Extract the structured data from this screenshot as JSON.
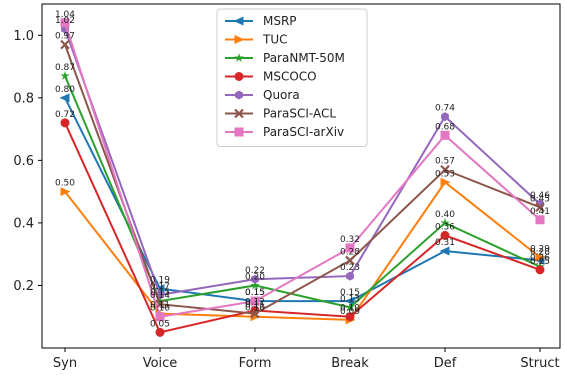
{
  "chart_data": {
    "type": "line",
    "title": "",
    "xlabel": "",
    "ylabel": "",
    "categories": [
      "Syn",
      "Voice",
      "Form",
      "Break",
      "Def",
      "Struct"
    ],
    "ylim": [
      0.0,
      1.1
    ],
    "yticks": [
      "0.2",
      "0.4",
      "0.6",
      "0.8",
      "1.0"
    ],
    "grid": false,
    "legend_position": "top-center",
    "series": [
      {
        "name": "MSRP",
        "color": "#1f77b4",
        "marker": "triangle-left",
        "values": [
          0.8,
          0.19,
          0.15,
          0.15,
          0.31,
          0.28
        ],
        "labels": [
          "0.80",
          "0.19",
          "0.15",
          "0.15",
          "0.31",
          "0.28"
        ]
      },
      {
        "name": "TUC",
        "color": "#ff7f0e",
        "marker": "triangle-right",
        "values": [
          0.5,
          0.11,
          0.1,
          0.09,
          0.53,
          0.29
        ],
        "labels": [
          "0.50",
          "0.11",
          "0.10",
          "0.09",
          "0.53",
          "0.29"
        ]
      },
      {
        "name": "ParaNMT-50M",
        "color": "#2ca02c",
        "marker": "star",
        "values": [
          0.87,
          0.15,
          0.2,
          0.13,
          0.4,
          0.26
        ],
        "labels": [
          "0.87",
          "0.15",
          "0.20",
          "0.13",
          "0.40",
          "0.26"
        ]
      },
      {
        "name": "MSCOCO",
        "color": "#d62728",
        "marker": "circle",
        "values": [
          0.72,
          0.05,
          0.12,
          0.1,
          0.36,
          0.25
        ],
        "labels": [
          "0.72",
          "0.05",
          "0.12",
          "0.10",
          "0.36",
          "0.25"
        ]
      },
      {
        "name": "Quora",
        "color": "#9467bd",
        "marker": "hexagon",
        "values": [
          1.02,
          0.17,
          0.22,
          0.23,
          0.74,
          0.46
        ],
        "labels": [
          "1.02",
          "0.17",
          "0.22",
          "0.23",
          "0.74",
          "0.46"
        ]
      },
      {
        "name": "ParaSCI-ACL",
        "color": "#8c564b",
        "marker": "x",
        "values": [
          0.97,
          0.14,
          0.11,
          0.28,
          0.57,
          0.45
        ],
        "labels": [
          "0.97",
          "0.14",
          "0.11",
          "0.28",
          "0.57",
          "0.45"
        ]
      },
      {
        "name": "ParaSCI-arXiv",
        "color": "#e377c2",
        "marker": "square",
        "values": [
          1.04,
          0.1,
          0.15,
          0.32,
          0.68,
          0.41
        ],
        "labels": [
          "1.04",
          "0.10",
          "0.15",
          "0.32",
          "0.68",
          "0.41"
        ]
      }
    ]
  }
}
